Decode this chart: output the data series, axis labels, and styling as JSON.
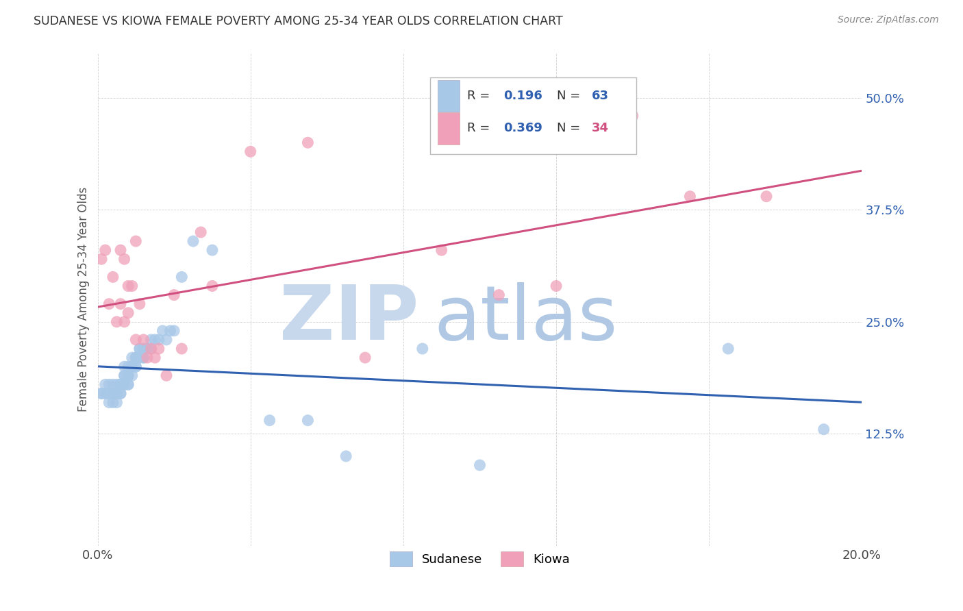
{
  "title": "SUDANESE VS KIOWA FEMALE POVERTY AMONG 25-34 YEAR OLDS CORRELATION CHART",
  "source": "Source: ZipAtlas.com",
  "ylabel": "Female Poverty Among 25-34 Year Olds",
  "xlim": [
    0.0,
    0.2
  ],
  "ylim": [
    0.0,
    0.55
  ],
  "xticks": [
    0.0,
    0.04,
    0.08,
    0.12,
    0.16,
    0.2
  ],
  "yticks": [
    0.0,
    0.125,
    0.25,
    0.375,
    0.5
  ],
  "blue_color": "#A8C8E8",
  "pink_color": "#F0A0B8",
  "line_blue": "#3060B0",
  "line_pink": "#D05080",
  "watermark_zip_color": "#C8D8EC",
  "watermark_atlas_color": "#B0C8E4",
  "legend_blue_r": "0.196",
  "legend_blue_n": "63",
  "legend_pink_r": "0.369",
  "legend_pink_n": "34",
  "blue_scatter_x": [
    0.001,
    0.001,
    0.002,
    0.002,
    0.003,
    0.003,
    0.003,
    0.004,
    0.004,
    0.004,
    0.005,
    0.005,
    0.005,
    0.005,
    0.006,
    0.006,
    0.006,
    0.006,
    0.006,
    0.007,
    0.007,
    0.007,
    0.007,
    0.007,
    0.008,
    0.008,
    0.008,
    0.008,
    0.008,
    0.009,
    0.009,
    0.009,
    0.009,
    0.01,
    0.01,
    0.01,
    0.01,
    0.011,
    0.011,
    0.011,
    0.012,
    0.012,
    0.012,
    0.013,
    0.013,
    0.014,
    0.014,
    0.015,
    0.016,
    0.017,
    0.018,
    0.019,
    0.02,
    0.022,
    0.025,
    0.03,
    0.045,
    0.055,
    0.065,
    0.085,
    0.1,
    0.165,
    0.19
  ],
  "blue_scatter_y": [
    0.17,
    0.17,
    0.18,
    0.17,
    0.16,
    0.18,
    0.17,
    0.17,
    0.18,
    0.16,
    0.17,
    0.17,
    0.18,
    0.16,
    0.18,
    0.18,
    0.17,
    0.18,
    0.17,
    0.18,
    0.2,
    0.19,
    0.19,
    0.18,
    0.2,
    0.19,
    0.19,
    0.18,
    0.18,
    0.21,
    0.2,
    0.2,
    0.19,
    0.2,
    0.21,
    0.21,
    0.2,
    0.22,
    0.21,
    0.22,
    0.21,
    0.22,
    0.21,
    0.22,
    0.22,
    0.23,
    0.22,
    0.23,
    0.23,
    0.24,
    0.23,
    0.24,
    0.24,
    0.3,
    0.34,
    0.33,
    0.14,
    0.14,
    0.1,
    0.22,
    0.09,
    0.22,
    0.13
  ],
  "pink_scatter_x": [
    0.001,
    0.002,
    0.003,
    0.004,
    0.005,
    0.006,
    0.006,
    0.007,
    0.007,
    0.008,
    0.008,
    0.009,
    0.01,
    0.01,
    0.011,
    0.012,
    0.013,
    0.014,
    0.015,
    0.016,
    0.018,
    0.02,
    0.022,
    0.027,
    0.03,
    0.04,
    0.055,
    0.07,
    0.09,
    0.105,
    0.12,
    0.14,
    0.155,
    0.175
  ],
  "pink_scatter_y": [
    0.32,
    0.33,
    0.27,
    0.3,
    0.25,
    0.33,
    0.27,
    0.25,
    0.32,
    0.26,
    0.29,
    0.29,
    0.34,
    0.23,
    0.27,
    0.23,
    0.21,
    0.22,
    0.21,
    0.22,
    0.19,
    0.28,
    0.22,
    0.35,
    0.29,
    0.44,
    0.45,
    0.21,
    0.33,
    0.28,
    0.29,
    0.48,
    0.39,
    0.39
  ]
}
